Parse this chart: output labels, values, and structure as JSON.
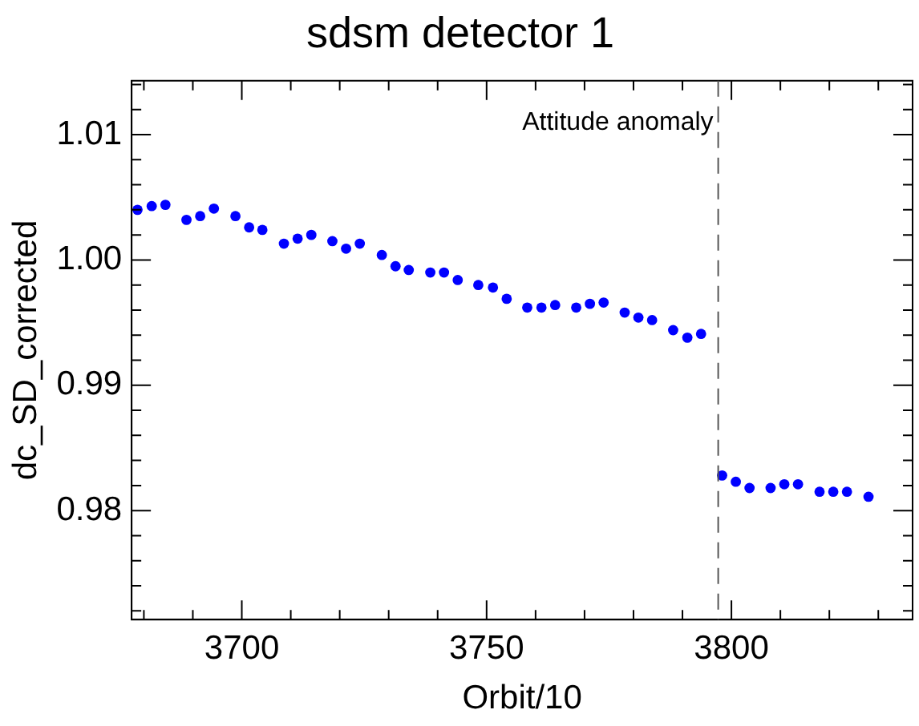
{
  "chart_data": {
    "type": "scatter",
    "title": "sdsm detector 1",
    "xlabel": "Orbit/10",
    "ylabel": "dc_SD_corrected",
    "marker": "circle",
    "grid": false,
    "legend": false,
    "x": [
      3678.7,
      3681.6,
      3684.4,
      3688.7,
      3691.5,
      3694.3,
      3698.7,
      3701.5,
      3704.2,
      3708.6,
      3711.4,
      3714.2,
      3718.5,
      3721.3,
      3724.1,
      3728.6,
      3731.4,
      3734.1,
      3738.5,
      3741.3,
      3744.1,
      3748.3,
      3751.3,
      3754.1,
      3758.3,
      3761.2,
      3764.0,
      3768.3,
      3771.1,
      3773.9,
      3778.2,
      3781.0,
      3783.8,
      3788.1,
      3791.0,
      3793.8,
      3798.1,
      3800.9,
      3803.7,
      3808.0,
      3810.8,
      3813.6,
      3818.0,
      3820.8,
      3823.6,
      3828.0
    ],
    "series": [
      {
        "color": "#0000ff",
        "values": [
          1.004,
          1.0043,
          1.0044,
          1.0032,
          1.0035,
          1.0041,
          1.0035,
          1.0026,
          1.0024,
          1.0013,
          1.0017,
          1.002,
          1.0015,
          1.0009,
          1.0013,
          1.0004,
          0.9995,
          0.9992,
          0.999,
          0.999,
          0.9984,
          0.998,
          0.9978,
          0.9969,
          0.9962,
          0.9962,
          0.9964,
          0.9962,
          0.9965,
          0.9966,
          0.9958,
          0.9954,
          0.9952,
          0.9944,
          0.9938,
          0.9941,
          0.9828,
          0.9823,
          0.9818,
          0.9818,
          0.9821,
          0.9821,
          0.9815,
          0.9815,
          0.9815,
          0.9811
        ]
      }
    ],
    "xlim": [
      3677.5,
      3837
    ],
    "xticks": [
      {
        "value": 3680,
        "label": null
      },
      {
        "value": 3690,
        "label": null
      },
      3700,
      {
        "value": 3710,
        "label": null
      },
      {
        "value": 3720,
        "label": null
      },
      {
        "value": 3730,
        "label": null
      },
      {
        "value": 3740,
        "label": null
      },
      3750,
      {
        "value": 3760,
        "label": null
      },
      {
        "value": 3770,
        "label": null
      },
      {
        "value": 3780,
        "label": null
      },
      {
        "value": 3790,
        "label": null
      },
      3800,
      {
        "value": 3810,
        "label": null
      },
      {
        "value": 3820,
        "label": null
      },
      {
        "value": 3830,
        "label": null
      }
    ],
    "ylim": [
      0.9713,
      1.0143
    ],
    "yticks": [
      {
        "value": 0.972,
        "label": null
      },
      {
        "value": 0.974,
        "label": null
      },
      {
        "value": 0.976,
        "label": null
      },
      {
        "value": 0.978,
        "label": null
      },
      {
        "value": 0.98,
        "label": "0.98"
      },
      {
        "value": 0.982,
        "label": null
      },
      {
        "value": 0.984,
        "label": null
      },
      {
        "value": 0.986,
        "label": null
      },
      {
        "value": 0.988,
        "label": null
      },
      {
        "value": 0.99,
        "label": "0.99"
      },
      {
        "value": 0.992,
        "label": null
      },
      {
        "value": 0.994,
        "label": null
      },
      {
        "value": 0.996,
        "label": null
      },
      {
        "value": 0.998,
        "label": null
      },
      {
        "value": 1.0,
        "label": "1.00"
      },
      {
        "value": 1.002,
        "label": null
      },
      {
        "value": 1.004,
        "label": null
      },
      {
        "value": 1.006,
        "label": null
      },
      {
        "value": 1.008,
        "label": null
      },
      {
        "value": 1.01,
        "label": "1.01"
      },
      {
        "value": 1.012,
        "label": null
      },
      {
        "value": 1.014,
        "label": null
      }
    ],
    "ref_lines": [
      {
        "axis": "x",
        "value": 3797.3,
        "label": "Attitude anomaly",
        "color": "#555555",
        "line_style": "dashed"
      }
    ]
  }
}
